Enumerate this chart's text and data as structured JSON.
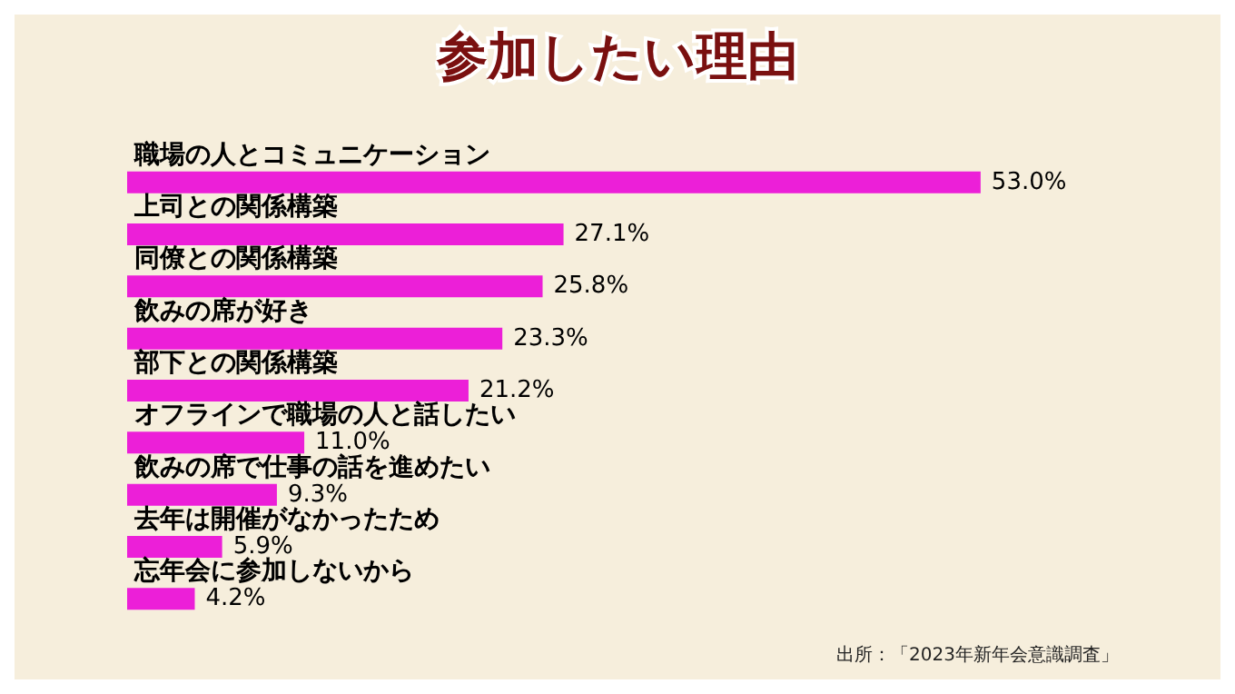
{
  "chart_data": {
    "type": "bar",
    "orientation": "horizontal",
    "title": "参加したい理由",
    "categories": [
      "職場の人とコミュニケーション",
      "上司との関係構築",
      "同僚との関係構築",
      "飲みの席が好き",
      "部下との関係構築",
      "オフラインで職場の人と話したい",
      "飲みの席で仕事の話を進めたい",
      "去年は開催がなかったため",
      "忘年会に参加しないから"
    ],
    "values": [
      53.0,
      27.1,
      25.8,
      23.3,
      21.2,
      11.0,
      9.3,
      5.9,
      4.2
    ],
    "value_labels": [
      "53.0%",
      "27.1%",
      "25.8%",
      "23.3%",
      "21.2%",
      "11.0%",
      "9.3%",
      "5.9%",
      "4.2%"
    ],
    "color": "#ec1fd8",
    "grid": false,
    "annotations": [
      "出所：「2023年新年会意識調査」"
    ]
  }
}
